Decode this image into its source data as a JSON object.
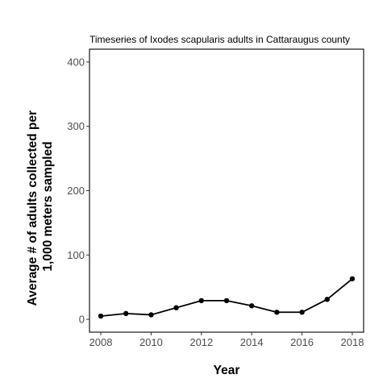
{
  "chart_data": {
    "type": "line",
    "title": "Timeseries of Ixodes scapularis adults in Cattaraugus county",
    "xlabel": "Year",
    "ylabel_lines": [
      "Average # of adults collected per",
      "1,000 meters sampled"
    ],
    "x_ticks": [
      2008,
      2010,
      2012,
      2014,
      2016,
      2018
    ],
    "y_ticks": [
      0,
      100,
      200,
      300,
      400
    ],
    "xlim": [
      2007.55,
      2018.45
    ],
    "ylim": [
      -20,
      420
    ],
    "grid": false,
    "legend": "none",
    "line_color": "#000000",
    "x": [
      2008,
      2009,
      2010,
      2011,
      2012,
      2013,
      2014,
      2015,
      2016,
      2017,
      2018
    ],
    "values": [
      5,
      9,
      7,
      18,
      29,
      29,
      21,
      11,
      11,
      31,
      63
    ]
  }
}
